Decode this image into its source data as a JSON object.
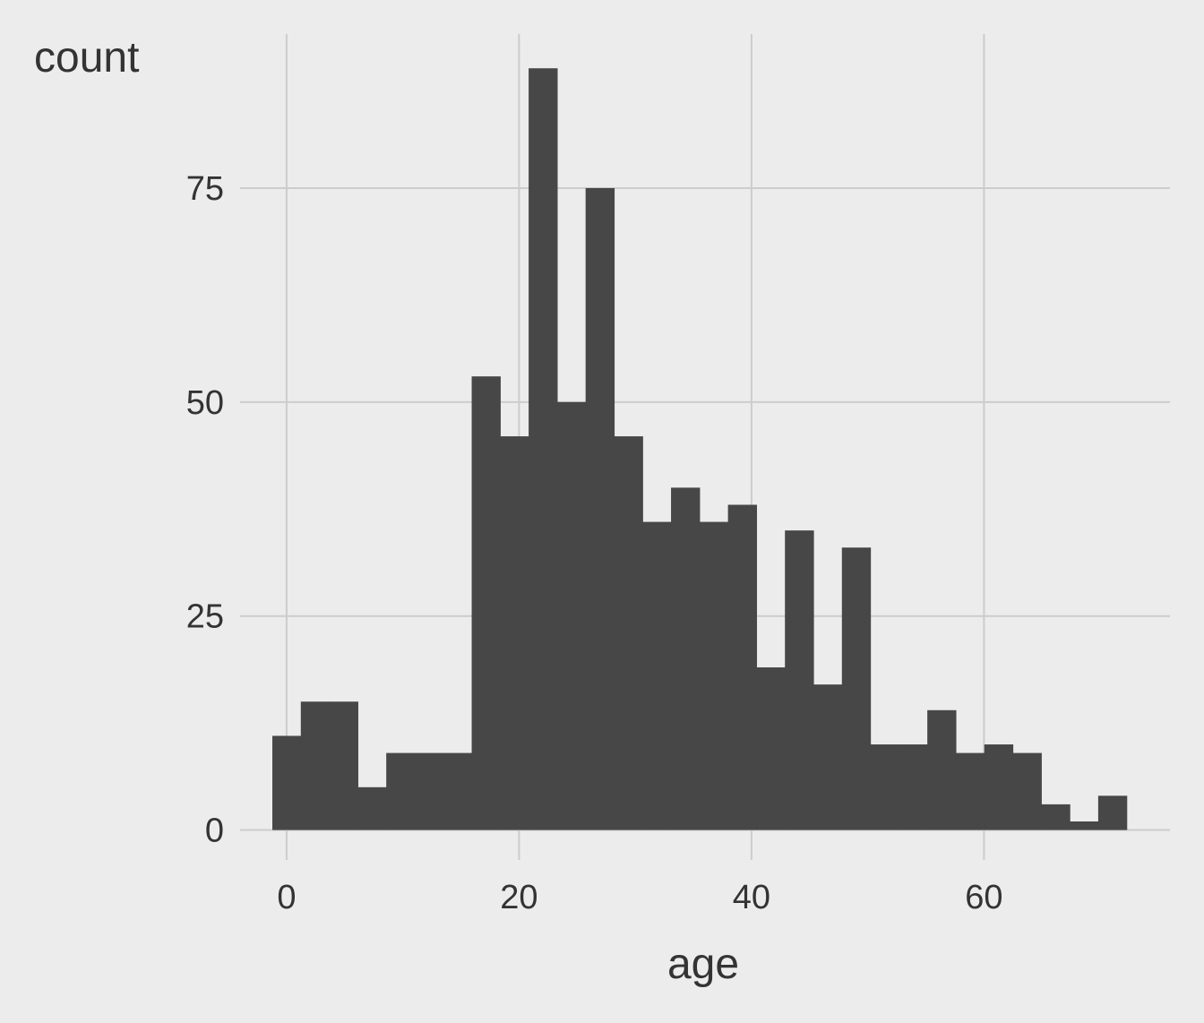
{
  "chart_data": {
    "type": "bar",
    "title": "",
    "xlabel": "age",
    "ylabel": "count",
    "bin_width": 2.45,
    "bins_x_start": [
      -1.225,
      1.225,
      3.675,
      6.125,
      8.575,
      11.025,
      13.475,
      15.925,
      18.375,
      20.825,
      23.275,
      25.725,
      28.175,
      30.625,
      33.075,
      35.525,
      37.975,
      40.425,
      42.875,
      45.325,
      47.775,
      50.225,
      52.675,
      55.125,
      57.575,
      60.025,
      62.475,
      64.925,
      67.375,
      69.825
    ],
    "values": [
      11,
      15,
      15,
      5,
      9,
      9,
      9,
      53,
      46,
      89,
      50,
      75,
      46,
      36,
      40,
      36,
      38,
      19,
      35,
      17,
      33,
      10,
      10,
      14,
      9,
      10,
      9,
      3,
      1,
      4
    ],
    "xlim": [
      -4,
      76
    ],
    "ylim": [
      -3.5,
      93
    ],
    "x_ticks": [
      0,
      20,
      40,
      60
    ],
    "y_ticks": [
      0,
      25,
      50,
      75
    ],
    "grid": true,
    "colors": {
      "background": "#ececec",
      "bar": "#474747",
      "grid": "#cccccc",
      "text": "#333333"
    }
  }
}
